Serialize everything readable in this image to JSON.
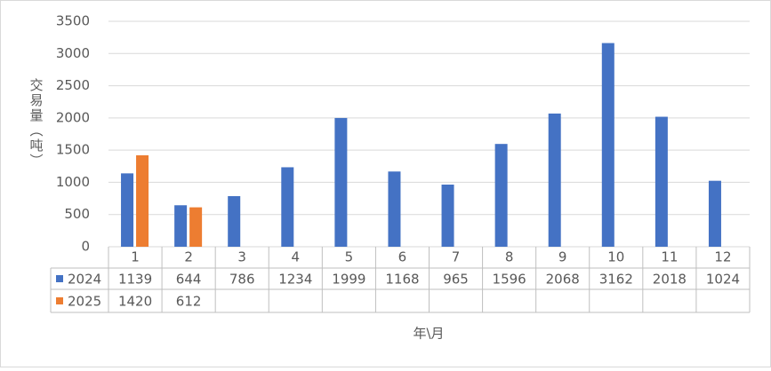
{
  "chart_data": {
    "type": "bar",
    "y_label": "交易量（吨）",
    "x_label": "年\\月",
    "categories": [
      "1",
      "2",
      "3",
      "4",
      "5",
      "6",
      "7",
      "8",
      "9",
      "10",
      "11",
      "12"
    ],
    "series": [
      {
        "name": "2024",
        "color": "#4472c4",
        "values": [
          1139,
          644,
          786,
          1234,
          1999,
          1168,
          965,
          1596,
          2068,
          3162,
          2018,
          1024
        ]
      },
      {
        "name": "2025",
        "color": "#ed7d31",
        "values": [
          1420,
          612,
          null,
          null,
          null,
          null,
          null,
          null,
          null,
          null,
          null,
          null
        ]
      }
    ],
    "ylim": [
      0,
      3500
    ],
    "yticks": [
      0,
      500,
      1000,
      1500,
      2000,
      2500,
      3000,
      3500
    ],
    "grid": true
  }
}
